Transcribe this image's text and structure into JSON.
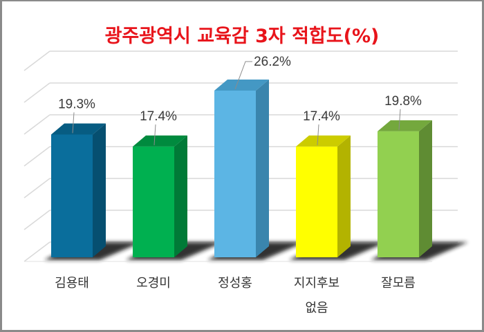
{
  "chart_data": {
    "type": "bar",
    "title": "광주광역시 교육감 3자 적합도(%)",
    "categories": [
      "김용태",
      "오경미",
      "정성홍",
      "지지후보 없음",
      "잘모름"
    ],
    "category_lines": [
      [
        "김용태"
      ],
      [
        "오경미"
      ],
      [
        "정성홍"
      ],
      [
        "지지후보",
        "없음"
      ],
      [
        "잘모름"
      ]
    ],
    "values": [
      19.3,
      17.4,
      26.2,
      17.4,
      19.8
    ],
    "value_labels": [
      "19.3%",
      "17.4%",
      "26.2%",
      "17.4%",
      "19.8%"
    ],
    "colors": {
      "front": [
        "#0a6e9c",
        "#00b050",
        "#5cb5e4",
        "#ffff00",
        "#92d050"
      ],
      "side": [
        "#064f70",
        "#007a37",
        "#3a85ad",
        "#b3b300",
        "#5f8c33"
      ],
      "top": [
        "#075c82",
        "#008a3e",
        "#4498c4",
        "#cccc00",
        "#74a83d"
      ]
    },
    "title_color": "#e8141b",
    "xlabel": "",
    "ylabel": "",
    "ylim": [
      0,
      30
    ],
    "grid": true,
    "legend": "none",
    "style": "3d-column"
  }
}
